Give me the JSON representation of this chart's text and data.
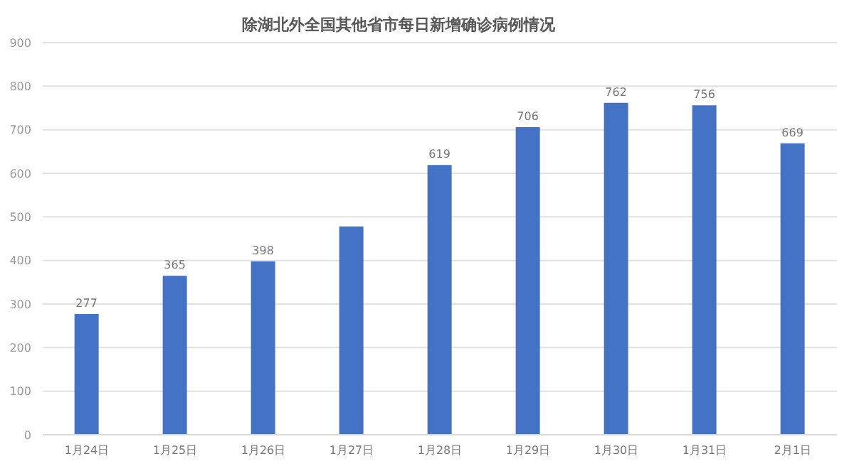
{
  "chart_data": {
    "type": "bar",
    "title": "除湖北外全国其他省市每日新增确诊病例情况",
    "categories": [
      "1月24日",
      "1月25日",
      "1月26日",
      "1月27日",
      "1月28日",
      "1月29日",
      "1月30日",
      "1月31日",
      "2月1日"
    ],
    "values": [
      277,
      365,
      398,
      478,
      619,
      706,
      762,
      756,
      669
    ],
    "value_labels": [
      "277",
      "365",
      "398",
      null,
      "619",
      "706",
      "762",
      "756",
      "669"
    ],
    "color": "#4472c4",
    "ylim": [
      0,
      900
    ],
    "yticks": [
      0,
      100,
      200,
      300,
      400,
      500,
      600,
      700,
      800,
      900
    ],
    "grid": "y"
  }
}
